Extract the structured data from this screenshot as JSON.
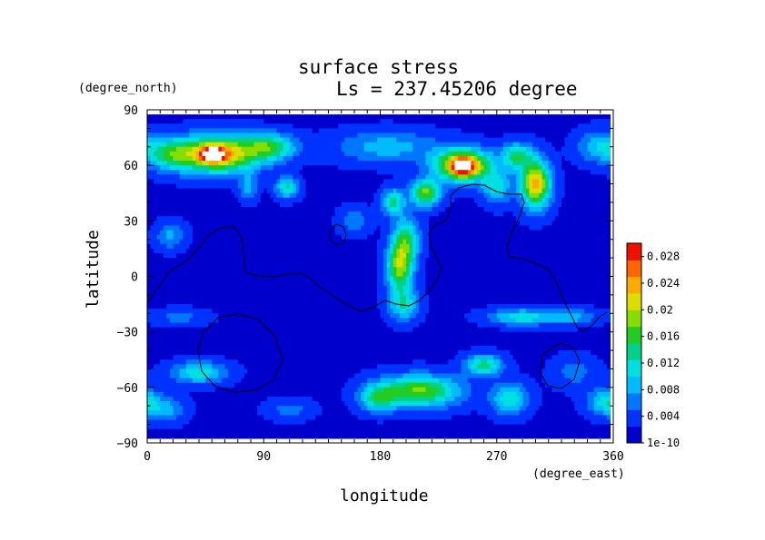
{
  "chart_data": {
    "type": "heatmap",
    "title": "surface stress",
    "subtitle": "Ls = 237.45206 degree",
    "xlabel": "longitude",
    "ylabel": "latitude",
    "x_unit": "(degree_east)",
    "y_unit": "(degree_north)",
    "xlim": [
      0,
      360
    ],
    "ylim": [
      -90,
      90
    ],
    "x_ticks": [
      "0",
      "90",
      "180",
      "270",
      "360"
    ],
    "y_ticks": [
      "90",
      "60",
      "30",
      "0",
      "−30",
      "−60",
      "−90"
    ],
    "x_tick_values": [
      0,
      90,
      180,
      270,
      360
    ],
    "y_tick_values": [
      90,
      60,
      30,
      0,
      -30,
      -60,
      -90
    ],
    "colorbar": {
      "labels": [
        "0.028",
        "0.024",
        "0.02",
        "0.016",
        "0.012",
        "0.008",
        "0.004",
        "1e-10"
      ],
      "values": [
        0.028,
        0.024,
        0.02,
        0.016,
        0.012,
        0.008,
        0.004,
        0
      ],
      "vmin": 0,
      "vmax": 0.03,
      "colors": [
        "#0000cc",
        "#0033ff",
        "#0077ff",
        "#00bbff",
        "#00e0e0",
        "#00d28a",
        "#22cc22",
        "#88dd00",
        "#dddd00",
        "#ffaa00",
        "#ff6600",
        "#ee1100"
      ]
    },
    "grid": false,
    "field": {
      "background": 0.002,
      "features": [
        {
          "lon": 55,
          "lat": 66,
          "sigma_lon": 22,
          "sigma_lat": 7,
          "value": 0.022
        },
        {
          "lon": 50,
          "lat": 66,
          "sigma_lon": 7,
          "sigma_lat": 3,
          "value": 0.014
        },
        {
          "lon": 95,
          "lat": 70,
          "sigma_lon": 14,
          "sigma_lat": 5,
          "value": 0.012
        },
        {
          "lon": 18,
          "lat": 66,
          "sigma_lon": 12,
          "sigma_lat": 6,
          "value": 0.01
        },
        {
          "lon": 350,
          "lat": 70,
          "sigma_lon": 12,
          "sigma_lat": 6,
          "value": 0.008
        },
        {
          "lon": 185,
          "lat": 70,
          "sigma_lon": 28,
          "sigma_lat": 6,
          "value": 0.007
        },
        {
          "lon": 244,
          "lat": 60,
          "sigma_lon": 15,
          "sigma_lat": 6,
          "value": 0.024
        },
        {
          "lon": 244,
          "lat": 59,
          "sigma_lon": 6,
          "sigma_lat": 3,
          "value": 0.012
        },
        {
          "lon": 300,
          "lat": 50,
          "sigma_lon": 8,
          "sigma_lat": 9,
          "value": 0.022
        },
        {
          "lon": 285,
          "lat": 65,
          "sigma_lon": 8,
          "sigma_lat": 5,
          "value": 0.012
        },
        {
          "lon": 215,
          "lat": 45,
          "sigma_lon": 8,
          "sigma_lat": 5,
          "value": 0.016
        },
        {
          "lon": 190,
          "lat": 40,
          "sigma_lon": 6,
          "sigma_lat": 5,
          "value": 0.012
        },
        {
          "lon": 270,
          "lat": 48,
          "sigma_lon": 8,
          "sigma_lat": 6,
          "value": 0.009
        },
        {
          "lon": 108,
          "lat": 48,
          "sigma_lon": 6,
          "sigma_lat": 4,
          "value": 0.011
        },
        {
          "lon": 78,
          "lat": 48,
          "sigma_lon": 5,
          "sigma_lat": 5,
          "value": 0.006
        },
        {
          "lon": 195,
          "lat": 5,
          "sigma_lon": 7,
          "sigma_lat": 9,
          "value": 0.017
        },
        {
          "lon": 200,
          "lat": 20,
          "sigma_lon": 7,
          "sigma_lat": 8,
          "value": 0.012
        },
        {
          "lon": 198,
          "lat": -15,
          "sigma_lon": 8,
          "sigma_lat": 6,
          "value": 0.01
        },
        {
          "lon": 18,
          "lat": 22,
          "sigma_lon": 8,
          "sigma_lat": 5,
          "value": 0.006
        },
        {
          "lon": 160,
          "lat": 30,
          "sigma_lon": 8,
          "sigma_lat": 5,
          "value": 0.005
        },
        {
          "lon": 290,
          "lat": -22,
          "sigma_lon": 18,
          "sigma_lat": 3,
          "value": 0.01
        },
        {
          "lon": 330,
          "lat": -22,
          "sigma_lon": 12,
          "sigma_lat": 3,
          "value": 0.006
        },
        {
          "lon": 25,
          "lat": -22,
          "sigma_lon": 15,
          "sigma_lat": 3,
          "value": 0.004
        },
        {
          "lon": 40,
          "lat": -52,
          "sigma_lon": 15,
          "sigma_lat": 4,
          "value": 0.01
        },
        {
          "lon": 210,
          "lat": -62,
          "sigma_lon": 22,
          "sigma_lat": 6,
          "value": 0.016
        },
        {
          "lon": 178,
          "lat": -66,
          "sigma_lon": 10,
          "sigma_lat": 5,
          "value": 0.01
        },
        {
          "lon": 260,
          "lat": -48,
          "sigma_lon": 10,
          "sigma_lat": 4,
          "value": 0.012
        },
        {
          "lon": 280,
          "lat": -66,
          "sigma_lon": 10,
          "sigma_lat": 6,
          "value": 0.01
        },
        {
          "lon": 355,
          "lat": -68,
          "sigma_lon": 10,
          "sigma_lat": 5,
          "value": 0.01
        },
        {
          "lon": 15,
          "lat": -72,
          "sigma_lon": 10,
          "sigma_lat": 5,
          "value": 0.006
        },
        {
          "lon": 330,
          "lat": -52,
          "sigma_lon": 12,
          "sigma_lat": 6,
          "value": 0.004
        },
        {
          "lon": 110,
          "lat": -72,
          "sigma_lon": 12,
          "sigma_lat": 4,
          "value": 0.004
        }
      ]
    }
  }
}
